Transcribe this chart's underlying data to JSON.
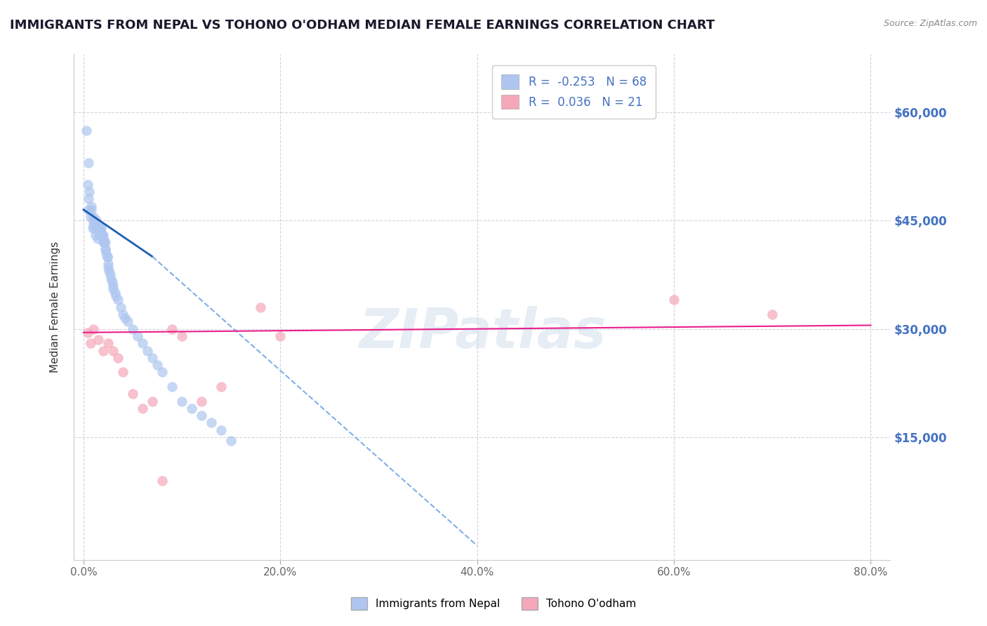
{
  "title": "IMMIGRANTS FROM NEPAL VS TOHONO O'ODHAM MEDIAN FEMALE EARNINGS CORRELATION CHART",
  "source_text": "Source: ZipAtlas.com",
  "ylabel": "Median Female Earnings",
  "xlabel_ticks": [
    "0.0%",
    "20.0%",
    "40.0%",
    "60.0%",
    "80.0%"
  ],
  "xlabel_vals": [
    0,
    20,
    40,
    60,
    80
  ],
  "ytick_labels": [
    "$60,000",
    "$45,000",
    "$30,000",
    "$15,000"
  ],
  "ytick_vals": [
    60000,
    45000,
    30000,
    15000
  ],
  "xlim": [
    -1,
    82
  ],
  "ylim": [
    -2000,
    68000
  ],
  "legend": {
    "series": [
      {
        "label": "Immigrants from Nepal",
        "R": -0.253,
        "N": 68,
        "color": "#aec6f0"
      },
      {
        "label": "Tohono O'odham",
        "R": 0.036,
        "N": 21,
        "color": "#f4a7b9"
      }
    ]
  },
  "watermark": "ZIPatlas",
  "nepal_x": [
    0.3,
    0.5,
    0.5,
    0.6,
    0.8,
    0.8,
    1.0,
    1.0,
    1.0,
    1.1,
    1.2,
    1.3,
    1.4,
    1.5,
    1.5,
    1.6,
    1.7,
    1.7,
    1.8,
    1.8,
    1.9,
    2.0,
    2.0,
    2.1,
    2.2,
    2.2,
    2.3,
    2.4,
    2.5,
    2.5,
    2.6,
    2.7,
    2.8,
    2.9,
    3.0,
    3.0,
    3.2,
    3.3,
    3.5,
    3.8,
    4.0,
    4.2,
    4.5,
    5.0,
    5.5,
    6.0,
    6.5,
    7.0,
    7.5,
    8.0,
    9.0,
    10.0,
    11.0,
    12.0,
    13.0,
    14.0,
    15.0,
    0.4,
    0.5,
    0.7,
    0.9,
    1.2,
    1.4,
    1.6,
    1.8,
    2.0,
    2.2,
    2.4
  ],
  "nepal_y": [
    57500,
    48000,
    53000,
    49000,
    47000,
    46500,
    45500,
    45000,
    44500,
    44000,
    44500,
    45000,
    44000,
    43500,
    44000,
    44000,
    43500,
    44000,
    43000,
    44000,
    43000,
    42500,
    43000,
    42000,
    41000,
    42000,
    40500,
    40000,
    39000,
    38500,
    38000,
    37500,
    37000,
    36500,
    36000,
    35500,
    35000,
    34500,
    34000,
    33000,
    32000,
    31500,
    31000,
    30000,
    29000,
    28000,
    27000,
    26000,
    25000,
    24000,
    22000,
    20000,
    19000,
    18000,
    17000,
    16000,
    14500,
    50000,
    46500,
    45500,
    44000,
    43000,
    42500,
    43500,
    43000,
    42000,
    41000,
    40000
  ],
  "tohono_x": [
    0.4,
    0.7,
    1.0,
    1.5,
    2.0,
    2.5,
    3.0,
    3.5,
    4.0,
    5.0,
    6.0,
    7.0,
    8.0,
    9.0,
    10.0,
    12.0,
    14.0,
    18.0,
    20.0,
    60.0,
    70.0
  ],
  "tohono_y": [
    29500,
    28000,
    30000,
    28500,
    27000,
    28000,
    27000,
    26000,
    24000,
    21000,
    19000,
    20000,
    9000,
    30000,
    29000,
    20000,
    22000,
    33000,
    29000,
    34000,
    32000
  ],
  "nepal_trendline_solid": {
    "x": [
      0,
      7
    ],
    "y": [
      46500,
      40000
    ]
  },
  "nepal_trendline_dashed": {
    "x": [
      7,
      40
    ],
    "y": [
      40000,
      0
    ]
  },
  "tohono_trendline": {
    "x": [
      0,
      80
    ],
    "y": [
      29500,
      30500
    ]
  },
  "nepal_trend_color": "#1a5fb4",
  "nepal_trend_dashed_color": "#7fb0e8",
  "tohono_trend_color": "#e91e8c",
  "background_color": "#ffffff",
  "grid_color": "#c8c8d8",
  "right_axis_color": "#4472c4",
  "title_color": "#1a1a2e",
  "title_fontsize": 13,
  "axis_label_color": "#333333",
  "scatter_size": 100
}
